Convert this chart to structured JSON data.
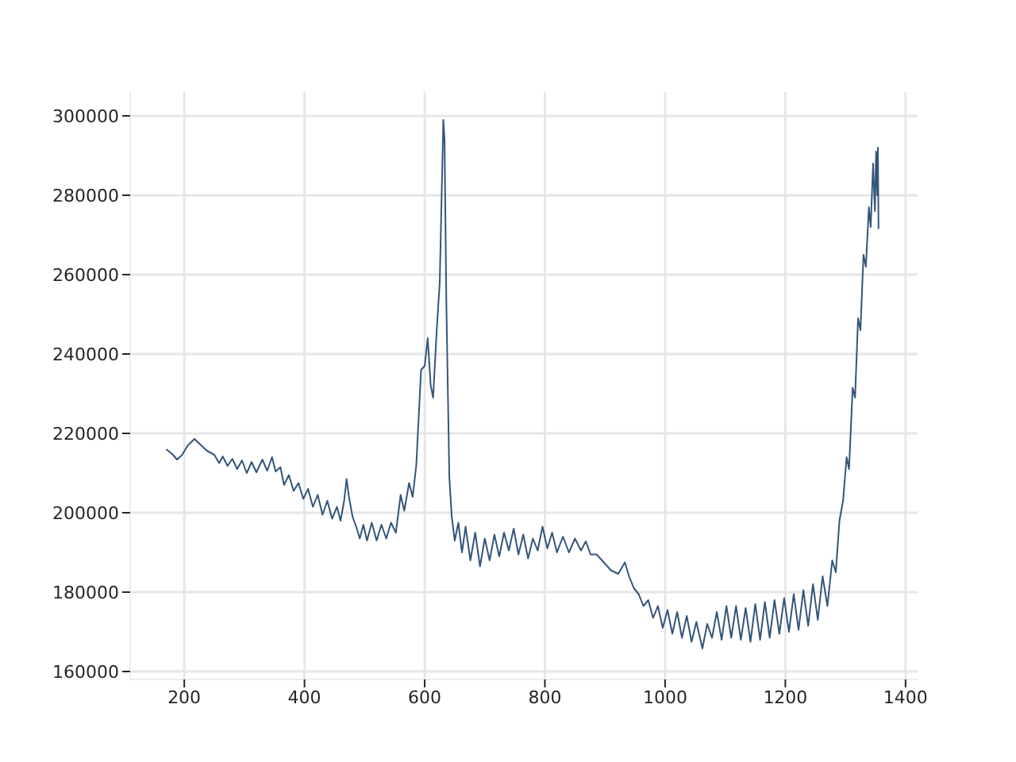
{
  "chart_data": {
    "type": "line",
    "color": "#34557a",
    "line_style": "solid",
    "grid": true,
    "xlim": [
      110,
      1420
    ],
    "ylim": [
      158000,
      306000
    ],
    "xticks": [
      200,
      400,
      600,
      800,
      1000,
      1200,
      1400
    ],
    "yticks": [
      160000,
      180000,
      200000,
      220000,
      240000,
      260000,
      280000,
      300000
    ],
    "x": [
      170,
      180,
      188,
      196,
      206,
      217,
      228,
      238,
      250,
      258,
      264,
      272,
      280,
      288,
      296,
      304,
      312,
      320,
      330,
      338,
      346,
      352,
      360,
      366,
      374,
      382,
      390,
      398,
      406,
      414,
      422,
      430,
      438,
      446,
      454,
      460,
      466,
      470,
      474,
      480,
      486,
      492,
      498,
      504,
      512,
      520,
      528,
      536,
      544,
      552,
      560,
      566,
      574,
      580,
      586,
      590,
      594,
      600,
      605,
      610,
      614,
      620,
      625,
      631,
      633,
      636,
      641,
      645,
      650,
      656,
      662,
      668,
      676,
      684,
      692,
      700,
      708,
      716,
      724,
      732,
      740,
      748,
      756,
      764,
      772,
      780,
      788,
      796,
      804,
      812,
      820,
      830,
      840,
      850,
      860,
      868,
      876,
      886,
      898,
      910,
      922,
      933,
      940,
      948,
      956,
      964,
      972,
      980,
      988,
      996,
      1004,
      1012,
      1020,
      1028,
      1036,
      1044,
      1052,
      1062,
      1070,
      1078,
      1086,
      1094,
      1102,
      1110,
      1118,
      1126,
      1134,
      1142,
      1150,
      1158,
      1166,
      1174,
      1182,
      1190,
      1198,
      1206,
      1214,
      1222,
      1230,
      1238,
      1246,
      1254,
      1262,
      1270,
      1278,
      1284,
      1290,
      1296,
      1302,
      1306,
      1312,
      1316,
      1321,
      1325,
      1330,
      1334,
      1339,
      1342,
      1346,
      1349,
      1351,
      1353,
      1354,
      1355
    ],
    "values": [
      216000,
      214800,
      213400,
      214500,
      217000,
      218600,
      217000,
      215600,
      214600,
      212500,
      214200,
      211800,
      213600,
      211000,
      213200,
      210000,
      212800,
      210200,
      213400,
      210600,
      214000,
      210400,
      211500,
      207000,
      209500,
      205500,
      207500,
      203500,
      206000,
      201500,
      204500,
      199500,
      203000,
      198500,
      201500,
      198000,
      203000,
      208500,
      204000,
      199000,
      196500,
      193500,
      197000,
      193000,
      197500,
      193000,
      197000,
      193500,
      197500,
      195000,
      204500,
      200500,
      207500,
      204000,
      212000,
      224000,
      236000,
      237000,
      244000,
      232000,
      229000,
      246000,
      258000,
      299000,
      294000,
      253000,
      209000,
      199000,
      193000,
      197500,
      190000,
      196500,
      188000,
      195000,
      186500,
      193500,
      188000,
      194500,
      189000,
      195000,
      190500,
      196000,
      189500,
      194500,
      188500,
      193500,
      190500,
      196500,
      191000,
      195000,
      190000,
      194000,
      190000,
      193500,
      190500,
      192800,
      189500,
      189500,
      187500,
      185500,
      184600,
      187500,
      184000,
      181000,
      179500,
      176500,
      178000,
      173500,
      176500,
      171000,
      175500,
      169500,
      175000,
      168500,
      174000,
      167500,
      172500,
      165800,
      172000,
      168500,
      175000,
      168000,
      176500,
      168500,
      176500,
      168000,
      176000,
      167500,
      177000,
      168000,
      177500,
      168500,
      178000,
      169500,
      178500,
      170000,
      179500,
      170500,
      180500,
      171500,
      182000,
      173000,
      184000,
      176500,
      188000,
      185000,
      198000,
      203000,
      214000,
      211000,
      231500,
      229000,
      249000,
      246000,
      265000,
      262000,
      277000,
      272000,
      288000,
      276000,
      291000,
      280000,
      292000,
      271500
    ]
  }
}
